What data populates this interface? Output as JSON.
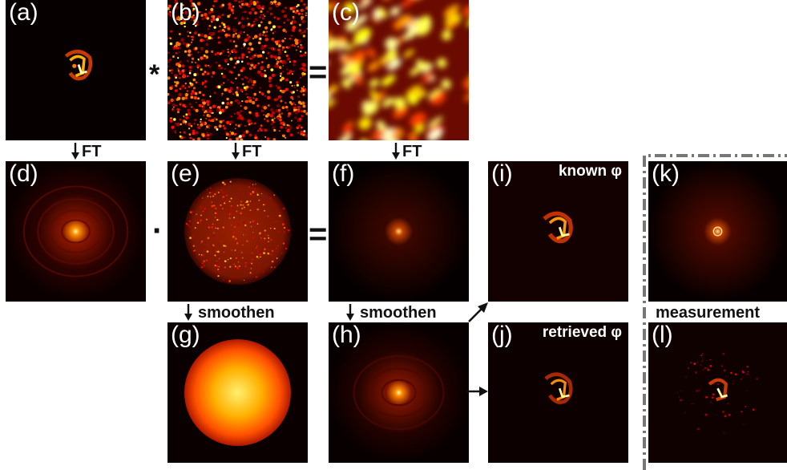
{
  "panels": {
    "a": {
      "label": "(a)",
      "title": ""
    },
    "b": {
      "label": "(b)",
      "title": ""
    },
    "c": {
      "label": "(c)",
      "title": ""
    },
    "d": {
      "label": "(d)",
      "title": ""
    },
    "e": {
      "label": "(e)",
      "title": ""
    },
    "f": {
      "label": "(f)",
      "title": ""
    },
    "g": {
      "label": "(g)",
      "title": ""
    },
    "h": {
      "label": "(h)",
      "title": ""
    },
    "i": {
      "label": "(i)",
      "title": "known φ"
    },
    "j": {
      "label": "(j)",
      "title": "retrieved φ"
    },
    "k": {
      "label": "(k)",
      "title": ""
    },
    "l": {
      "label": "(l)",
      "title": ""
    }
  },
  "operators": {
    "convolve": "*",
    "equals_top": "=",
    "multiply": "·",
    "equals_mid": "="
  },
  "arrows": {
    "ft_a": "FT",
    "ft_b": "FT",
    "ft_c": "FT",
    "smoothen_e": "smoothen",
    "smoothen_f": "smoothen"
  },
  "measurement_label": "measurement",
  "colors": {
    "colormap": "hot",
    "background": "#0a0000",
    "dash_box": "#777777"
  }
}
